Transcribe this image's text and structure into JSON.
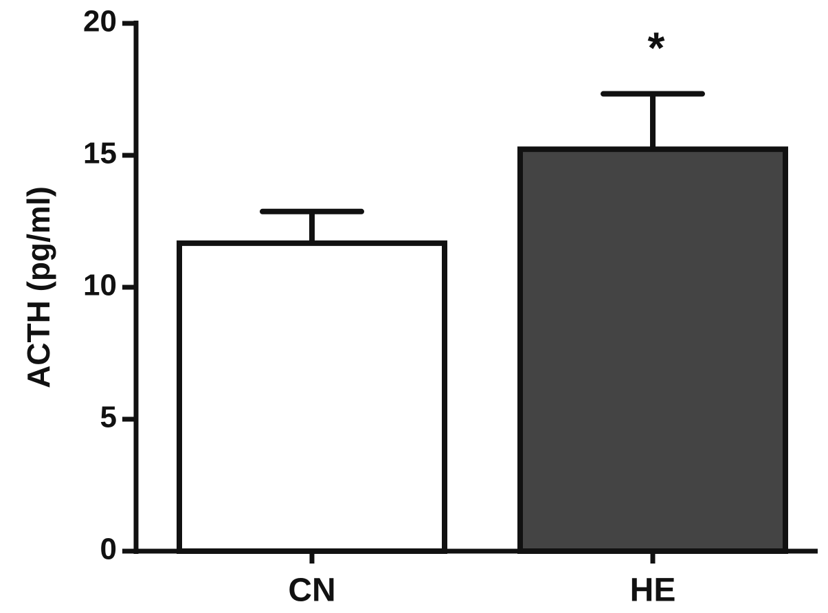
{
  "chart_data": {
    "type": "bar",
    "y_label": "ACTH (pg/ml)",
    "categories": [
      "CN",
      "HE"
    ],
    "values": [
      11.67,
      15.23
    ],
    "errors": [
      1.2,
      2.1
    ],
    "colors": [
      "#ffffff",
      "#444444"
    ],
    "significance": [
      null,
      "*"
    ],
    "ylim": [
      0,
      20
    ],
    "yticks": [
      0,
      5,
      10,
      15,
      20
    ]
  }
}
